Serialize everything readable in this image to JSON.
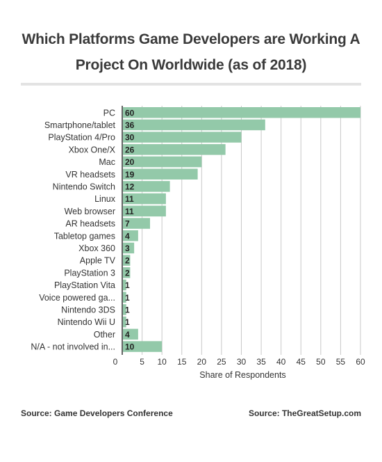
{
  "header": {
    "title_line1": "Which Platforms Game Developers are Working A",
    "title_line2": "Project On Worldwide (as of 2018)"
  },
  "footer": {
    "source_left": "Source: Game Developers Conference",
    "source_right": "Source: TheGreatSetup.com"
  },
  "colors": {
    "bar": "#93c9a9",
    "grid": "#c8c8c8",
    "title_rule": "#e3e3e3"
  },
  "chart_data": {
    "type": "bar",
    "orientation": "horizontal",
    "categories": [
      "PC",
      "Smartphone/tablet",
      "PlayStation 4/Pro",
      "Xbox One/X",
      "Mac",
      "VR headsets",
      "Nintendo Switch",
      "Linux",
      "Web browser",
      "AR headsets",
      "Tabletop games",
      "Xbox 360",
      "Apple TV",
      "PlayStation 3",
      "PlayStation Vita",
      "Voice powered ga...",
      "Nintendo 3DS",
      "Nintendo Wii U",
      "Other",
      "N/A - not involved in..."
    ],
    "values": [
      60,
      36,
      30,
      26,
      20,
      19,
      12,
      11,
      11,
      7,
      4,
      3,
      2,
      2,
      1,
      1,
      1,
      1,
      4,
      10
    ],
    "xlabel": "Share of Respondents",
    "xlim": [
      0,
      60
    ],
    "xticks": [
      "0",
      "5",
      "10",
      "15",
      "20",
      "25",
      "30",
      "35",
      "40",
      "45",
      "50",
      "55",
      "60"
    ],
    "grid": true,
    "data_labels": true
  }
}
